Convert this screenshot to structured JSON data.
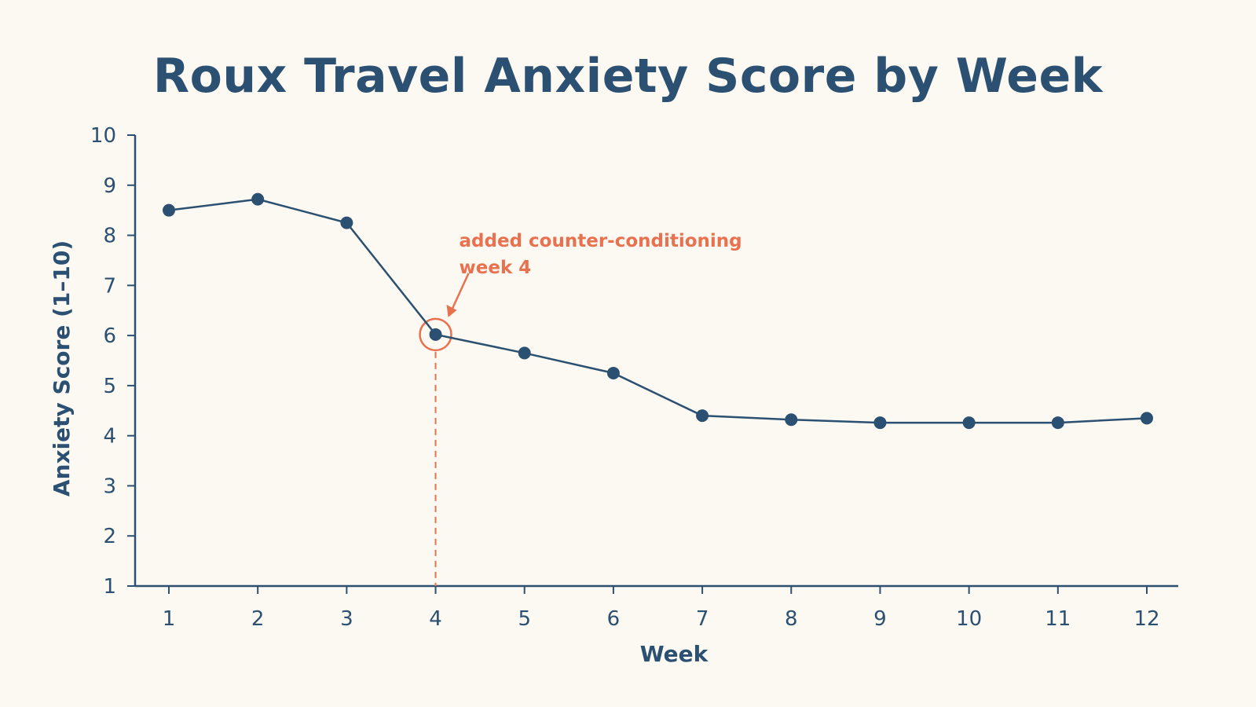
{
  "chart_data": {
    "type": "line",
    "title": "Roux Travel Anxiety Score by Week",
    "xlabel": "Week",
    "ylabel": "Anxiety Score (1–10)",
    "x": [
      1,
      2,
      3,
      4,
      5,
      6,
      7,
      8,
      9,
      10,
      11,
      12
    ],
    "xlim": [
      1,
      12
    ],
    "ylim": [
      1,
      10
    ],
    "yticks": [
      1,
      2,
      3,
      4,
      5,
      6,
      7,
      8,
      9,
      10
    ],
    "grid": false,
    "series": [
      {
        "values": [
          8.5,
          8.72,
          8.25,
          6.02,
          5.65,
          5.25,
          4.4,
          4.32,
          4.26,
          4.26,
          4.26,
          4.35
        ],
        "color": "#2b5071"
      }
    ],
    "annotations": [
      {
        "lines": [
          "added counter-conditioning",
          "week 4"
        ],
        "x": 4,
        "y": 6.02,
        "color": "#e8714f"
      }
    ]
  }
}
